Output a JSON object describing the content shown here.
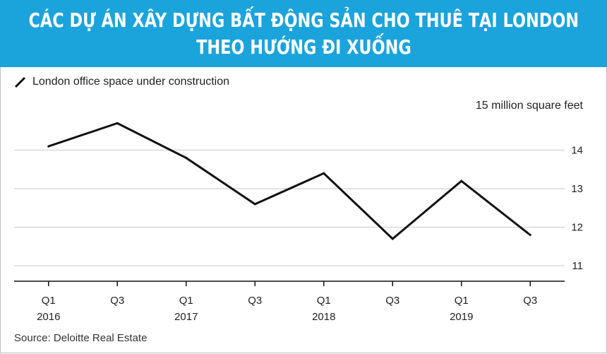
{
  "banner": {
    "line1": "CÁC DỰ ÁN XÂY DỰNG BẤT ĐỘNG SẢN CHO THUÊ TẠI LONDON",
    "line2": "THEO HƯỚNG ĐI XUỐNG"
  },
  "chart_data": {
    "type": "line",
    "legend": "London office space under construction",
    "unit_label": "15 million square feet",
    "source": "Source: Deloitte Real Estate",
    "x": [
      "Q1 2016",
      "Q3 2016",
      "Q1 2017",
      "Q3 2017",
      "Q1 2018",
      "Q3 2018",
      "Q1 2019",
      "Q3 2019"
    ],
    "x_tick_labels": [
      {
        "quarter": "Q1",
        "year": "2016"
      },
      {
        "quarter": "Q3",
        "year": ""
      },
      {
        "quarter": "Q1",
        "year": "2017"
      },
      {
        "quarter": "Q3",
        "year": ""
      },
      {
        "quarter": "Q1",
        "year": "2018"
      },
      {
        "quarter": "Q3",
        "year": ""
      },
      {
        "quarter": "Q1",
        "year": "2019"
      },
      {
        "quarter": "Q3",
        "year": ""
      }
    ],
    "series": [
      {
        "values": [
          14.1,
          14.7,
          13.8,
          12.6,
          13.4,
          11.7,
          13.2,
          11.8
        ]
      }
    ],
    "ylim": [
      10.6,
      15
    ],
    "y_ticks": [
      11,
      12,
      13,
      14
    ],
    "grid": true,
    "legend_position": "top-left",
    "line_color": "#111111",
    "grid_color": "#d9d9d9",
    "banner_color": "#1ba3dc"
  }
}
